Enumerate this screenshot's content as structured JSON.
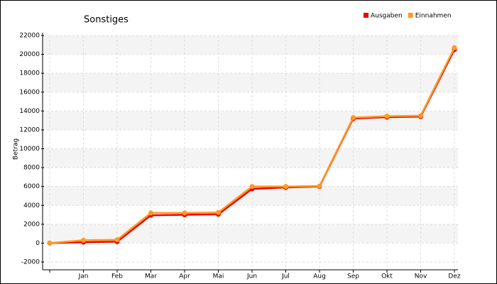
{
  "chart_data": {
    "type": "line",
    "title": "Sonstiges",
    "ylabel": "Betrag",
    "categories": [
      null,
      "Jan",
      "Feb",
      "Mar",
      "Apr",
      "Mai",
      "Jun",
      "Jul",
      "Aug",
      "Sep",
      "Okt",
      "Nov",
      "Dez"
    ],
    "series": [
      {
        "name": "Ausgaben",
        "color": "#ee0000",
        "values": [
          0,
          100,
          150,
          2950,
          3000,
          3050,
          5750,
          5900,
          6000,
          13200,
          13350,
          13400,
          20500
        ]
      },
      {
        "name": "Einnahmen",
        "color": "#ff9922",
        "values": [
          0,
          300,
          350,
          3200,
          3200,
          3250,
          6000,
          6000,
          6050,
          13300,
          13450,
          13500,
          20700
        ]
      }
    ],
    "ylim": [
      -2000,
      22000
    ],
    "yticks": [
      -2000,
      0,
      2000,
      4000,
      6000,
      8000,
      10000,
      12000,
      14000,
      16000,
      18000,
      20000,
      22000
    ],
    "grid": true,
    "legend": "top-right"
  }
}
